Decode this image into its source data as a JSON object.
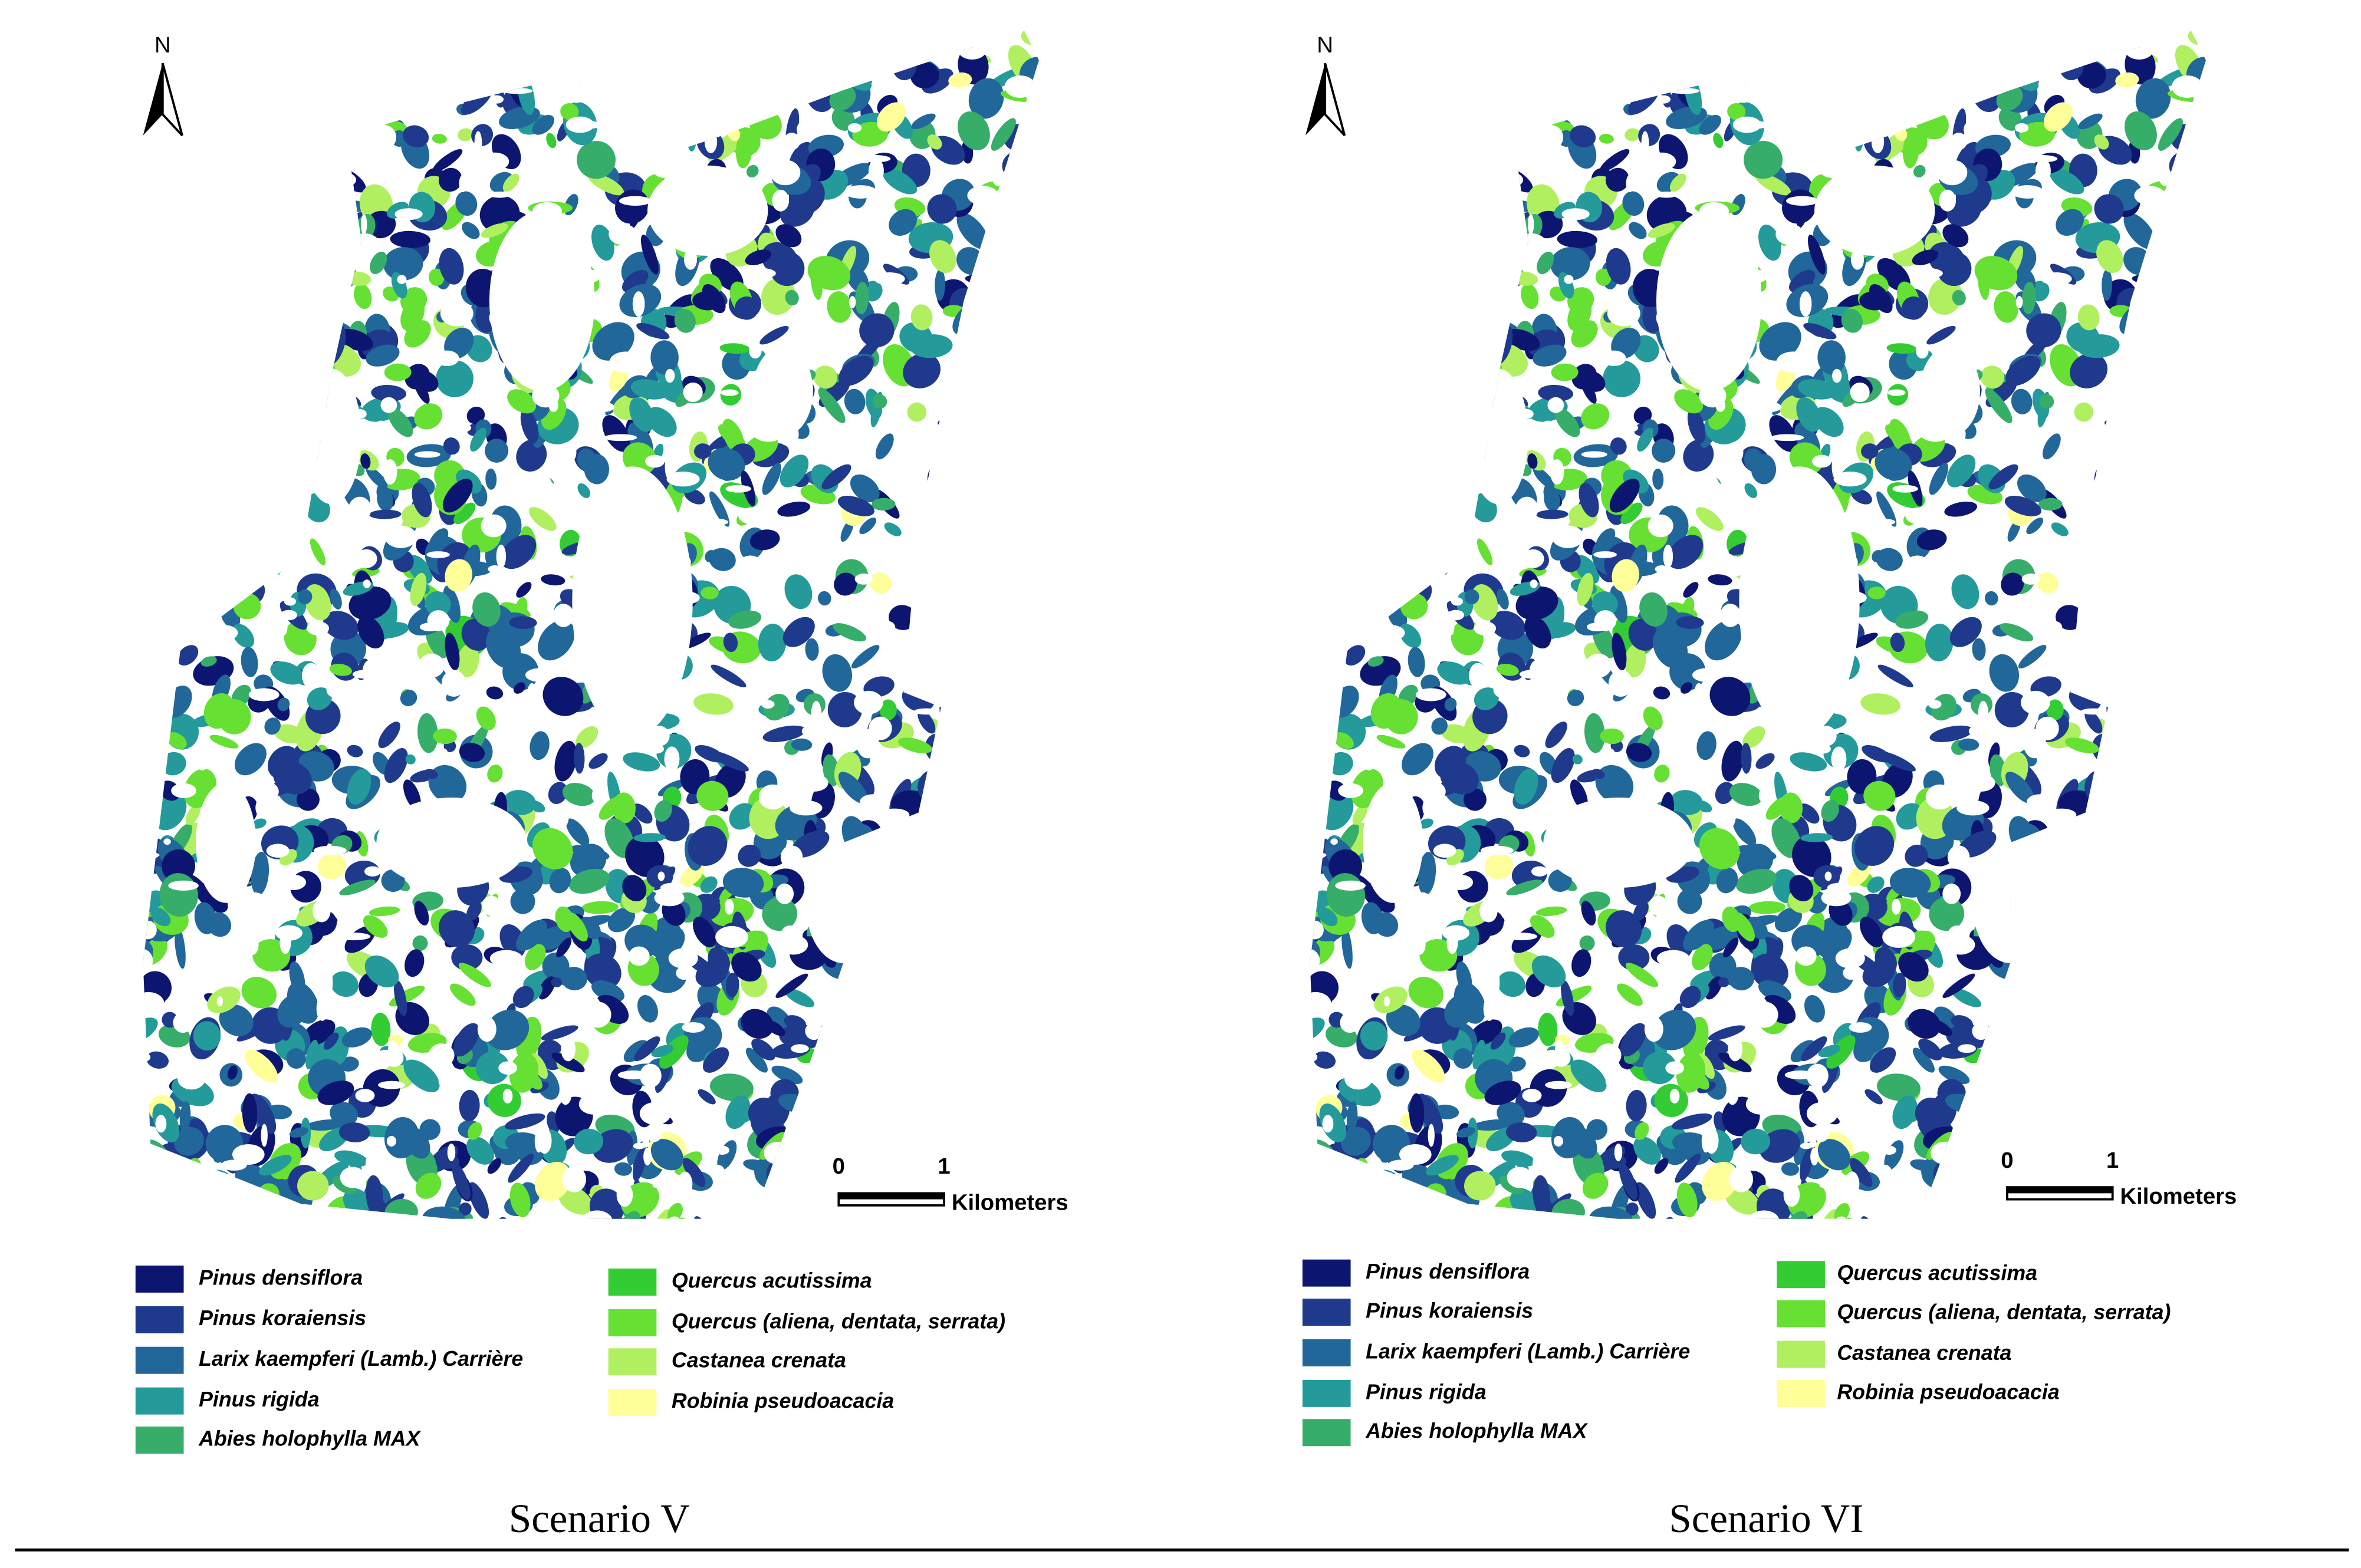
{
  "panels": [
    {
      "north": "N",
      "scale_labels": [
        "0",
        "1"
      ],
      "scale_unit": "Kilometers",
      "legend": [
        {
          "label": "Pinus densiflora",
          "color": "#0c1670"
        },
        {
          "label": "Pinus koraiensis",
          "color": "#1f3a8c"
        },
        {
          "label": "Larix kaempferi (Lamb.) Carrière",
          "color": "#22679a"
        },
        {
          "label": "Pinus rigida",
          "color": "#249a9a"
        },
        {
          "label": "Abies holophylla MAX",
          "color": "#37ad6a"
        },
        {
          "label": "Quercus acutissima",
          "color": "#33cc33"
        },
        {
          "label": "Quercus (aliena, dentata, serrata)",
          "color": "#66e033"
        },
        {
          "label": "Castanea crenata",
          "color": "#b0f060"
        },
        {
          "label": "Robinia pseudoacacia",
          "color": "#ffff99"
        }
      ],
      "caption": "Scenario V"
    },
    {
      "north": "N",
      "scale_labels": [
        "0",
        "1"
      ],
      "scale_unit": "Kilometers",
      "legend": [
        {
          "label": "Pinus densiflora",
          "color": "#0c1670"
        },
        {
          "label": "Pinus koraiensis",
          "color": "#1f3a8c"
        },
        {
          "label": "Larix kaempferi (Lamb.) Carrière",
          "color": "#22679a"
        },
        {
          "label": "Pinus rigida",
          "color": "#249a9a"
        },
        {
          "label": "Abies holophylla MAX",
          "color": "#37ad6a"
        },
        {
          "label": "Quercus acutissima",
          "color": "#33cc33"
        },
        {
          "label": "Quercus (aliena, dentata, serrata)",
          "color": "#66e033"
        },
        {
          "label": "Castanea crenata",
          "color": "#b0f060"
        },
        {
          "label": "Robinia pseudoacacia",
          "color": "#ffff99"
        }
      ],
      "caption": "Scenario VI"
    }
  ]
}
